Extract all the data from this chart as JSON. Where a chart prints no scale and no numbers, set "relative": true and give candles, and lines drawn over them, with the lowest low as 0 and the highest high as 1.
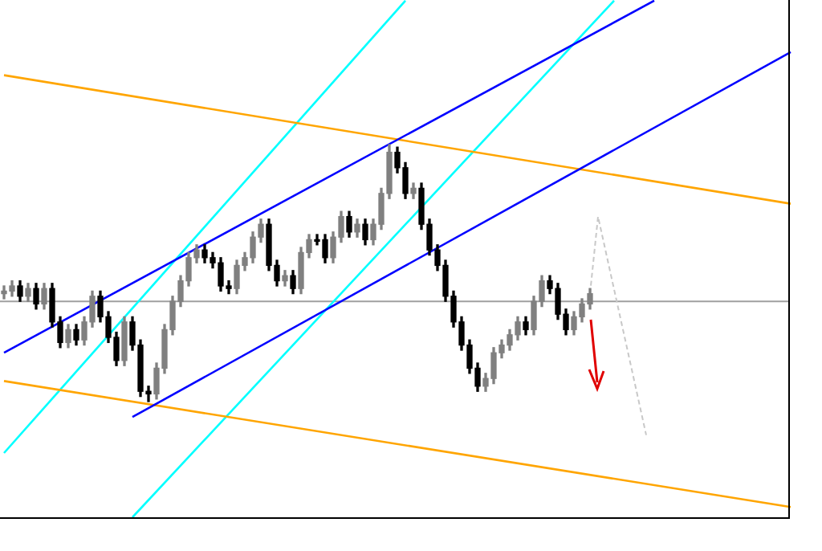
{
  "chart_data": {
    "type": "candlestick",
    "relative": true,
    "categories": [
      null,
      null,
      null,
      null,
      null,
      null,
      null,
      null,
      null,
      null,
      null,
      null,
      null,
      null,
      null,
      null,
      null,
      null,
      null,
      null,
      null,
      null,
      null,
      null,
      null,
      null,
      null,
      null,
      null,
      null,
      null,
      null,
      null,
      null,
      null,
      null,
      null,
      null,
      null,
      null,
      null,
      null,
      null,
      null,
      null,
      null,
      null,
      null,
      null,
      null,
      null,
      null,
      null,
      null,
      null,
      null,
      null,
      null,
      null,
      null,
      null,
      null,
      null,
      null,
      null,
      null,
      null,
      null,
      null,
      null,
      null,
      null,
      null,
      null,
      null,
      null,
      null,
      null,
      null,
      null,
      null,
      null,
      null,
      null,
      null,
      null,
      null,
      null,
      null,
      null,
      null,
      null,
      null,
      null,
      null,
      null,
      null,
      null,
      null
    ],
    "series": [
      {
        "colors": [
          "#808080",
          "#808080",
          "#000000",
          "#808080",
          "#000000",
          "#808080",
          "#000000",
          "#000000",
          "#808080",
          "#000000",
          "#808080",
          "#808080",
          "#000000",
          "#000000",
          "#000000",
          "#808080",
          "#000000",
          "#000000",
          "#000000",
          "#808080",
          "#808080",
          "#808080",
          "#808080",
          "#808080",
          "#808080",
          "#000000",
          "#000000",
          "#000000",
          "#000000",
          "#808080",
          "#808080",
          "#808080",
          "#808080",
          "#000000",
          "#000000",
          "#808080",
          "#000000",
          "#808080",
          "#808080",
          "#000000",
          "#000000",
          "#808080",
          "#808080",
          "#000000",
          "#808080",
          "#000000",
          "#808080",
          "#808080",
          "#808080",
          "#000000",
          "#000000",
          "#808080",
          "#000000",
          "#000000",
          "#000000",
          "#000000",
          "#000000",
          "#000000",
          "#000000",
          "#000000",
          "#808080",
          "#808080",
          "#808080",
          "#808080",
          "#808080",
          "#000000",
          "#808080",
          "#808080",
          "#000000",
          "#000000",
          "#000000",
          "#808080",
          "#808080",
          "#808080",
          null,
          null,
          null,
          null,
          null,
          null,
          null,
          null,
          null,
          null,
          null,
          null,
          null,
          null,
          null,
          null,
          null,
          null,
          null,
          null,
          null,
          null,
          null,
          null,
          null
        ],
        "ohlc": [
          [
            0.42,
            0.45,
            0.4,
            0.43
          ],
          [
            0.43,
            0.47,
            0.41,
            0.45
          ],
          [
            0.45,
            0.47,
            0.39,
            0.41
          ],
          [
            0.41,
            0.46,
            0.39,
            0.44
          ],
          [
            0.44,
            0.46,
            0.36,
            0.38
          ],
          [
            0.38,
            0.46,
            0.36,
            0.44
          ],
          [
            0.44,
            0.46,
            0.29,
            0.31
          ],
          [
            0.31,
            0.33,
            0.21,
            0.23
          ],
          [
            0.23,
            0.3,
            0.21,
            0.28
          ],
          [
            0.28,
            0.3,
            0.22,
            0.24
          ],
          [
            0.24,
            0.33,
            0.22,
            0.31
          ],
          [
            0.31,
            0.43,
            0.29,
            0.41
          ],
          [
            0.41,
            0.43,
            0.31,
            0.33
          ],
          [
            0.33,
            0.35,
            0.23,
            0.25
          ],
          [
            0.25,
            0.27,
            0.14,
            0.16
          ],
          [
            0.16,
            0.33,
            0.14,
            0.31
          ],
          [
            0.31,
            0.33,
            0.2,
            0.22
          ],
          [
            0.22,
            0.24,
            0.02,
            0.04
          ],
          [
            0.04,
            0.06,
            0,
            0.03
          ],
          [
            0.03,
            0.15,
            0.01,
            0.13
          ],
          [
            0.13,
            0.3,
            0.11,
            0.28
          ],
          [
            0.28,
            0.41,
            0.26,
            0.39
          ],
          [
            0.39,
            0.49,
            0.37,
            0.47
          ],
          [
            0.47,
            0.58,
            0.45,
            0.56
          ],
          [
            0.56,
            0.61,
            0.54,
            0.59
          ],
          [
            0.59,
            0.61,
            0.54,
            0.56
          ],
          [
            0.56,
            0.58,
            0.52,
            0.54
          ],
          [
            0.54,
            0.56,
            0.43,
            0.45
          ],
          [
            0.45,
            0.47,
            0.42,
            0.44
          ],
          [
            0.44,
            0.55,
            0.42,
            0.53
          ],
          [
            0.53,
            0.58,
            0.51,
            0.56
          ],
          [
            0.56,
            0.66,
            0.54,
            0.64
          ],
          [
            0.64,
            0.71,
            0.62,
            0.69
          ],
          [
            0.69,
            0.71,
            0.51,
            0.53
          ],
          [
            0.53,
            0.55,
            0.45,
            0.47
          ],
          [
            0.47,
            0.51,
            0.45,
            0.49
          ],
          [
            0.49,
            0.51,
            0.42,
            0.44
          ],
          [
            0.44,
            0.6,
            0.42,
            0.58
          ],
          [
            0.58,
            0.65,
            0.56,
            0.63
          ],
          [
            0.63,
            0.65,
            0.61,
            0.63
          ],
          [
            0.63,
            0.65,
            0.54,
            0.56
          ],
          [
            0.56,
            0.66,
            0.54,
            0.64
          ],
          [
            0.64,
            0.74,
            0.62,
            0.72
          ],
          [
            0.72,
            0.74,
            0.64,
            0.66
          ],
          [
            0.66,
            0.71,
            0.64,
            0.69
          ],
          [
            0.69,
            0.71,
            0.61,
            0.63
          ],
          [
            0.63,
            0.71,
            0.61,
            0.69
          ],
          [
            0.69,
            0.83,
            0.67,
            0.81
          ],
          [
            0.81,
            1,
            0.79,
            0.97
          ],
          [
            0.97,
            0.99,
            0.89,
            0.91
          ],
          [
            0.91,
            0.93,
            0.79,
            0.81
          ],
          [
            0.81,
            0.85,
            0.79,
            0.83
          ],
          [
            0.83,
            0.85,
            0.67,
            0.69
          ],
          [
            0.69,
            0.71,
            0.57,
            0.59
          ],
          [
            0.59,
            0.61,
            0.51,
            0.53
          ],
          [
            0.53,
            0.55,
            0.39,
            0.41
          ],
          [
            0.41,
            0.43,
            0.29,
            0.31
          ],
          [
            0.31,
            0.33,
            0.2,
            0.22
          ],
          [
            0.22,
            0.24,
            0.11,
            0.13
          ],
          [
            0.13,
            0.15,
            0.04,
            0.06
          ],
          [
            0.06,
            0.11,
            0.04,
            0.09
          ],
          [
            0.09,
            0.21,
            0.07,
            0.19
          ],
          [
            0.19,
            0.24,
            0.17,
            0.22
          ],
          [
            0.22,
            0.28,
            0.2,
            0.26
          ],
          [
            0.26,
            0.33,
            0.24,
            0.31
          ],
          [
            0.31,
            0.33,
            0.26,
            0.28
          ],
          [
            0.28,
            0.41,
            0.26,
            0.39
          ],
          [
            0.39,
            0.49,
            0.37,
            0.47
          ],
          [
            0.47,
            0.49,
            0.42,
            0.44
          ],
          [
            0.44,
            0.46,
            0.32,
            0.34
          ],
          [
            0.34,
            0.36,
            0.26,
            0.28
          ],
          [
            0.28,
            0.35,
            0.26,
            0.33
          ],
          [
            0.33,
            0.4,
            0.31,
            0.38
          ],
          [
            0.38,
            0.44,
            0.36,
            0.42
          ],
          null,
          null,
          null,
          null,
          null,
          null,
          null,
          null,
          null,
          null,
          null,
          null,
          null,
          null,
          null,
          null,
          null,
          null,
          null,
          null,
          null,
          null,
          null,
          null,
          null
        ]
      },
      {
        "type": "line",
        "color": "#0000ff",
        "values": [
          0.19,
          null,
          null,
          null,
          null,
          null,
          null,
          null,
          null,
          null,
          null,
          null,
          null,
          null,
          null,
          null,
          null,
          null,
          null,
          null,
          null,
          null,
          null,
          null,
          null,
          null,
          null,
          null,
          null,
          null,
          null,
          null,
          null,
          null,
          null,
          null,
          null,
          null,
          null,
          null,
          null,
          null,
          null,
          null,
          null,
          null,
          null,
          null,
          null,
          null,
          null,
          null,
          null,
          null,
          null,
          null,
          null,
          null,
          null,
          null,
          null,
          null,
          null,
          null,
          null,
          null,
          null,
          null,
          null,
          null,
          null,
          null,
          null,
          null,
          null,
          null,
          null,
          null,
          null,
          null,
          null,
          1.56,
          null,
          null,
          null,
          null,
          null,
          null,
          null,
          null,
          null,
          null,
          null,
          null,
          null,
          null,
          null,
          null,
          null
        ]
      },
      {
        "type": "line",
        "color": "#0000ff",
        "values": [
          null,
          null,
          null,
          null,
          null,
          null,
          null,
          null,
          null,
          null,
          null,
          null,
          null,
          null,
          null,
          null,
          -0.06,
          null,
          null,
          null,
          null,
          null,
          null,
          null,
          null,
          null,
          null,
          null,
          null,
          null,
          null,
          null,
          null,
          null,
          null,
          null,
          null,
          null,
          null,
          null,
          null,
          null,
          null,
          null,
          null,
          null,
          null,
          null,
          null,
          null,
          null,
          null,
          null,
          null,
          null,
          null,
          null,
          null,
          null,
          null,
          null,
          null,
          null,
          null,
          null,
          null,
          null,
          null,
          null,
          null,
          null,
          null,
          null,
          null,
          null,
          null,
          null,
          null,
          null,
          null,
          null,
          null,
          null,
          null,
          null,
          null,
          null,
          null,
          null,
          null,
          null,
          null,
          null,
          null,
          null,
          null,
          null,
          null,
          1.36
        ]
      },
      {
        "type": "line",
        "color": "#ffa500",
        "values": [
          1.27,
          null,
          null,
          null,
          null,
          null,
          null,
          null,
          null,
          null,
          null,
          null,
          null,
          null,
          null,
          null,
          null,
          null,
          null,
          null,
          null,
          null,
          null,
          null,
          null,
          null,
          null,
          null,
          null,
          null,
          null,
          null,
          null,
          null,
          null,
          null,
          null,
          null,
          null,
          null,
          null,
          null,
          null,
          null,
          null,
          null,
          null,
          null,
          null,
          null,
          null,
          null,
          null,
          null,
          null,
          null,
          null,
          null,
          null,
          null,
          null,
          null,
          null,
          null,
          null,
          null,
          null,
          null,
          null,
          null,
          null,
          null,
          null,
          null,
          null,
          null,
          null,
          null,
          null,
          null,
          null,
          null,
          null,
          null,
          null,
          null,
          null,
          null,
          null,
          null,
          null,
          null,
          null,
          null,
          null,
          null,
          null,
          null,
          0.77
        ]
      },
      {
        "type": "line",
        "color": "#ffa500",
        "values": [
          0.08,
          null,
          null,
          null,
          null,
          null,
          null,
          null,
          null,
          null,
          null,
          null,
          null,
          null,
          null,
          null,
          null,
          null,
          null,
          null,
          null,
          null,
          null,
          null,
          null,
          null,
          null,
          null,
          null,
          null,
          null,
          null,
          null,
          null,
          null,
          null,
          null,
          null,
          null,
          null,
          null,
          null,
          null,
          null,
          null,
          null,
          null,
          null,
          null,
          null,
          null,
          null,
          null,
          null,
          null,
          null,
          null,
          null,
          null,
          null,
          null,
          null,
          null,
          null,
          null,
          null,
          null,
          null,
          null,
          null,
          null,
          null,
          null,
          null,
          null,
          null,
          null,
          null,
          null,
          null,
          null,
          null,
          null,
          null,
          null,
          null,
          null,
          null,
          null,
          null,
          null,
          null,
          null,
          null,
          null,
          null,
          null,
          null,
          -0.41
        ]
      },
      {
        "type": "line",
        "color": "#00ffff",
        "values": [
          -0.2,
          null,
          null,
          null,
          null,
          null,
          null,
          null,
          null,
          null,
          null,
          null,
          null,
          null,
          null,
          null,
          null,
          null,
          null,
          null,
          null,
          null,
          null,
          null,
          null,
          null,
          null,
          null,
          null,
          null,
          null,
          null,
          null,
          null,
          null,
          null,
          null,
          null,
          null,
          null,
          null,
          null,
          null,
          null,
          null,
          null,
          null,
          null,
          null,
          null,
          1.56,
          null,
          null,
          null,
          null,
          null,
          null,
          null,
          null,
          null,
          null,
          null,
          null,
          null,
          null,
          null,
          null,
          null,
          null,
          null,
          null,
          null,
          null,
          null,
          null,
          null,
          null,
          null,
          null,
          null,
          null,
          null,
          null,
          null,
          null,
          null,
          null,
          null,
          null,
          null,
          null,
          null,
          null,
          null,
          null,
          null,
          null,
          null,
          null
        ]
      },
      {
        "type": "line",
        "color": "#00ffff",
        "values": [
          null,
          null,
          null,
          null,
          null,
          null,
          null,
          null,
          null,
          null,
          null,
          null,
          null,
          null,
          null,
          null,
          -0.45,
          null,
          null,
          null,
          null,
          null,
          null,
          null,
          null,
          null,
          null,
          null,
          null,
          null,
          null,
          null,
          null,
          null,
          null,
          null,
          null,
          null,
          null,
          null,
          null,
          null,
          null,
          null,
          null,
          null,
          null,
          null,
          null,
          null,
          null,
          null,
          null,
          null,
          null,
          null,
          null,
          null,
          null,
          null,
          null,
          null,
          null,
          null,
          null,
          null,
          null,
          null,
          null,
          null,
          null,
          null,
          null,
          null,
          null,
          null,
          1.56,
          null,
          null,
          null,
          null,
          null,
          null,
          null,
          null,
          null,
          null,
          null,
          null,
          null,
          null,
          null,
          null,
          null,
          null,
          null,
          null,
          null,
          null
        ]
      },
      {
        "type": "line",
        "color": "#c8c8c8",
        "line_style": "dashed",
        "values": [
          null,
          null,
          null,
          null,
          null,
          null,
          null,
          null,
          null,
          null,
          null,
          null,
          null,
          null,
          null,
          null,
          null,
          null,
          null,
          null,
          null,
          null,
          null,
          null,
          null,
          null,
          null,
          null,
          null,
          null,
          null,
          null,
          null,
          null,
          null,
          null,
          null,
          null,
          null,
          null,
          null,
          null,
          null,
          null,
          null,
          null,
          null,
          null,
          null,
          null,
          null,
          null,
          null,
          null,
          null,
          null,
          null,
          null,
          null,
          null,
          null,
          null,
          null,
          null,
          null,
          null,
          null,
          null,
          null,
          null,
          null,
          null,
          null,
          0.42,
          0.72,
          null,
          null,
          null,
          null,
          null,
          -0.13,
          null,
          null,
          null,
          null,
          null,
          null,
          null,
          null,
          null,
          null,
          null,
          null,
          null,
          null,
          null,
          null,
          null,
          null
        ]
      }
    ],
    "ref_lines": [
      {
        "axis": "y",
        "value": 0.39,
        "color": "#a0a0a0"
      }
    ]
  }
}
